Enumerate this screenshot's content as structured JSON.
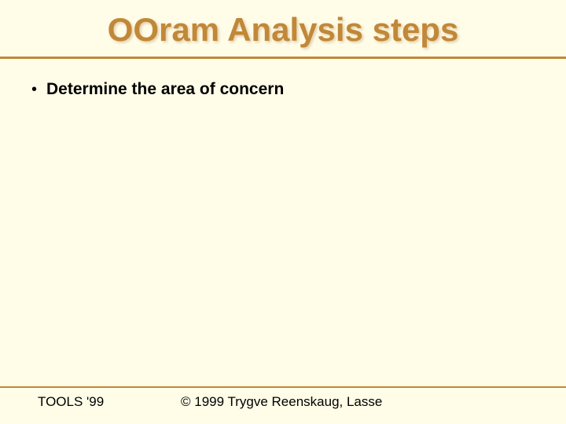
{
  "slide": {
    "title": "OOram Analysis steps",
    "title_color": "#c08838",
    "title_fontsize": 42,
    "background_color": "#fffce8",
    "rule_color": "#c08838",
    "bullets": [
      {
        "text": "Determine the area of concern"
      }
    ],
    "bullet_fontsize": 21,
    "bullet_color": "#000000",
    "footer": {
      "left": "TOOLS '99",
      "right": "© 1999 Trygve Reenskaug, Lasse",
      "fontsize": 17
    }
  }
}
